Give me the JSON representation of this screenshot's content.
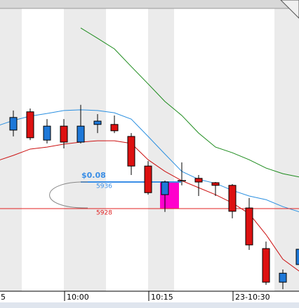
{
  "chart_data": {
    "type": "candlestick",
    "categories": [
      "5",
      null,
      null,
      null,
      "10:00",
      null,
      null,
      null,
      null,
      "10:15",
      null,
      null,
      null,
      null,
      "23-10:30",
      null,
      null,
      null,
      null
    ],
    "open": [
      null,
      5951.6,
      5957.1,
      5948.6,
      5952.8,
      5948.0,
      5953.3,
      5953.3,
      5949.7,
      5940.8,
      5932.2,
      5936.4,
      5937.1,
      5935.8,
      5935.0,
      5928.2,
      5916.0,
      5905.9,
      5911.2
    ],
    "high": [
      null,
      5957.5,
      5958.1,
      5954.9,
      5954.9,
      5959.2,
      5956.4,
      5956.0,
      5950.7,
      5942.3,
      5936.4,
      5941.9,
      5938.1,
      5936.0,
      5935.4,
      5931.2,
      5918.1,
      5909.7,
      5917.1
    ],
    "low": [
      null,
      5949.7,
      5948.6,
      5947.6,
      5946.1,
      5947.6,
      5950.7,
      5950.7,
      5938.1,
      5932.2,
      5927.0,
      5935.0,
      5931.8,
      5931.8,
      5925.1,
      5915.6,
      5905.1,
      5903.8,
      5910.3
    ],
    "close": [
      null,
      5955.4,
      5949.3,
      5952.8,
      5948.0,
      5952.8,
      5954.3,
      5951.4,
      5940.8,
      5932.8,
      5936.0,
      5936.4,
      5936.0,
      5935.0,
      5927.2,
      5917.1,
      5905.9,
      5908.6,
      5915.8
    ],
    "up_color": "#1e78d8",
    "down_color": "#dd1111",
    "flat_color": "#000000",
    "lines": [
      {
        "color": "#2a8fe0",
        "values": [
          5952.8,
          5954.5,
          5955.8,
          5956.6,
          5957.5,
          5957.7,
          5957.5,
          5956.8,
          5954.9,
          5949.7,
          5944.4,
          5939.2,
          5936.8,
          5935.6,
          5933.5,
          5931.8,
          5930.7,
          5928.6,
          5927.0
        ]
      },
      {
        "color": "#cc1111",
        "values": [
          5942.3,
          5944.0,
          5945.9,
          5946.5,
          5947.4,
          5948.0,
          5948.4,
          5948.4,
          5947.6,
          5942.7,
          5939.2,
          5936.4,
          5934.3,
          5932.2,
          5929.7,
          5926.5,
          5920.2,
          5912.8,
          5909.1
        ]
      },
      {
        "color": "#1a8a1a",
        "values": [
          null,
          null,
          null,
          null,
          null,
          5982.3,
          5979.2,
          5976.0,
          5970.7,
          5965.5,
          5960.2,
          5956.0,
          5950.7,
          5946.5,
          5944.8,
          5942.7,
          5940.2,
          5938.5,
          5937.5
        ]
      }
    ],
    "ylim": [
      5903.4,
      5990.7
    ],
    "annotations": {
      "change": "$0.08",
      "upper": 5936,
      "lower": 5928,
      "upper_color": "#3a8ee6",
      "lower_color": "#e02020",
      "highlight_color": "#ff00cc"
    }
  }
}
